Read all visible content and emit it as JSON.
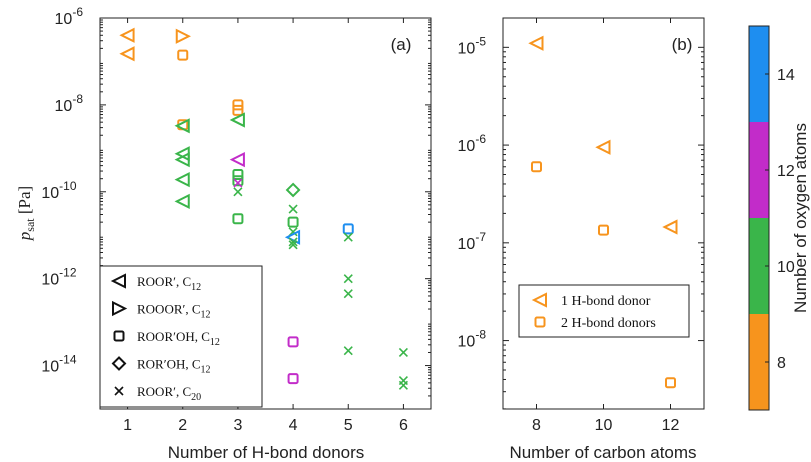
{
  "colors": {
    "o8": "#f7941d",
    "o10": "#3ab54a",
    "o12": "#c22cc9",
    "o14": "#1e8ef0"
  },
  "colorbar": {
    "label": "Number of oxygen atoms",
    "ticks": [
      "8",
      "10",
      "12",
      "14"
    ],
    "range": [
      7,
      15
    ]
  },
  "chart_data": [
    {
      "type": "scatter",
      "panel_label": "(a)",
      "xlabel": "Number of H-bond donors",
      "ylabel_main": "p",
      "ylabel_sub": "sat",
      "ylabel_unit": "[Pa]",
      "xlim": [
        0.5,
        6.5
      ],
      "ylim_log10": [
        -15,
        -6
      ],
      "x_ticks": [
        "1",
        "2",
        "3",
        "4",
        "5",
        "6"
      ],
      "y_ticks": [
        {
          "base": "10",
          "exp": "-6",
          "log": -6
        },
        {
          "base": "10",
          "exp": "-8",
          "log": -8
        },
        {
          "base": "10",
          "exp": "-10",
          "log": -10
        },
        {
          "base": "10",
          "exp": "-12",
          "log": -12
        },
        {
          "base": "10",
          "exp": "-14",
          "log": -14
        }
      ],
      "legend": [
        {
          "marker": "triangle-left",
          "name": "ROOR′, C",
          "sub": "12"
        },
        {
          "marker": "triangle-right",
          "name": "ROOOR′, C",
          "sub": "12"
        },
        {
          "marker": "square",
          "name": "ROOR′OH, C",
          "sub": "12"
        },
        {
          "marker": "diamond",
          "name": "ROR′OH, C",
          "sub": "12"
        },
        {
          "marker": "x",
          "name": "ROOR′, C",
          "sub": "20"
        }
      ],
      "points": [
        {
          "x": 1,
          "p": 4e-07,
          "marker": "triangle-left",
          "oxygen": 8
        },
        {
          "x": 1,
          "p": 1.5e-07,
          "marker": "triangle-left",
          "oxygen": 8
        },
        {
          "x": 2,
          "p": 3.8e-07,
          "marker": "triangle-right",
          "oxygen": 8
        },
        {
          "x": 2,
          "p": 1.4e-07,
          "marker": "square",
          "oxygen": 8
        },
        {
          "x": 2,
          "p": 3.5e-09,
          "marker": "square",
          "oxygen": 8
        },
        {
          "x": 2,
          "p": 3.3e-09,
          "marker": "triangle-left",
          "oxygen": 10
        },
        {
          "x": 2,
          "p": 7.5e-10,
          "marker": "triangle-left",
          "oxygen": 10
        },
        {
          "x": 2,
          "p": 5.5e-10,
          "marker": "triangle-left",
          "oxygen": 10
        },
        {
          "x": 2,
          "p": 1.9e-10,
          "marker": "triangle-left",
          "oxygen": 10
        },
        {
          "x": 2,
          "p": 6e-11,
          "marker": "triangle-left",
          "oxygen": 10
        },
        {
          "x": 3,
          "p": 1e-08,
          "marker": "square",
          "oxygen": 8
        },
        {
          "x": 3,
          "p": 7.5e-09,
          "marker": "square",
          "oxygen": 8
        },
        {
          "x": 3,
          "p": 4.5e-09,
          "marker": "triangle-left",
          "oxygen": 10
        },
        {
          "x": 3,
          "p": 5.5e-10,
          "marker": "triangle-left",
          "oxygen": 12
        },
        {
          "x": 3,
          "p": 2.5e-10,
          "marker": "square",
          "oxygen": 10
        },
        {
          "x": 3,
          "p": 1.8e-10,
          "marker": "square",
          "oxygen": 10
        },
        {
          "x": 3,
          "p": 1.6e-10,
          "marker": "x",
          "oxygen": 12
        },
        {
          "x": 3,
          "p": 1e-10,
          "marker": "x",
          "oxygen": 10
        },
        {
          "x": 3,
          "p": 2.4e-11,
          "marker": "square",
          "oxygen": 10
        },
        {
          "x": 4,
          "p": 1.1e-10,
          "marker": "diamond",
          "oxygen": 10
        },
        {
          "x": 4,
          "p": 4e-11,
          "marker": "x",
          "oxygen": 10
        },
        {
          "x": 4,
          "p": 2e-11,
          "marker": "square",
          "oxygen": 10
        },
        {
          "x": 4,
          "p": 1.2e-11,
          "marker": "x",
          "oxygen": 10
        },
        {
          "x": 4,
          "p": 9e-12,
          "marker": "triangle-left",
          "oxygen": 14
        },
        {
          "x": 4,
          "p": 7e-12,
          "marker": "x",
          "oxygen": 10
        },
        {
          "x": 4,
          "p": 6e-12,
          "marker": "x",
          "oxygen": 10
        },
        {
          "x": 4,
          "p": 3.5e-14,
          "marker": "square",
          "oxygen": 12
        },
        {
          "x": 4,
          "p": 5e-15,
          "marker": "square",
          "oxygen": 12
        },
        {
          "x": 5,
          "p": 1.4e-11,
          "marker": "square",
          "oxygen": 14
        },
        {
          "x": 5,
          "p": 9e-12,
          "marker": "x",
          "oxygen": 10
        },
        {
          "x": 5,
          "p": 1e-12,
          "marker": "x",
          "oxygen": 10
        },
        {
          "x": 5,
          "p": 4.5e-13,
          "marker": "x",
          "oxygen": 10
        },
        {
          "x": 5,
          "p": 2.2e-14,
          "marker": "x",
          "oxygen": 10
        },
        {
          "x": 6,
          "p": 2e-14,
          "marker": "x",
          "oxygen": 10
        },
        {
          "x": 6,
          "p": 4.5e-15,
          "marker": "x",
          "oxygen": 10
        },
        {
          "x": 6,
          "p": 3.5e-15,
          "marker": "x",
          "oxygen": 10
        }
      ]
    },
    {
      "type": "scatter",
      "panel_label": "(b)",
      "xlabel": "Number of carbon atoms",
      "xlim": [
        7,
        13
      ],
      "ylim_log10": [
        -8.7,
        -4.7
      ],
      "x_ticks": [
        "8",
        "10",
        "12"
      ],
      "y_ticks": [
        {
          "base": "10",
          "exp": "-5",
          "log": -5
        },
        {
          "base": "10",
          "exp": "-6",
          "log": -6
        },
        {
          "base": "10",
          "exp": "-7",
          "log": -7
        },
        {
          "base": "10",
          "exp": "-8",
          "log": -8
        }
      ],
      "legend": [
        {
          "marker": "triangle-left",
          "name": "1 H-bond donor"
        },
        {
          "marker": "square",
          "name": "2 H-bond donors"
        }
      ],
      "points": [
        {
          "x": 8,
          "p": 1.1e-05,
          "marker": "triangle-left",
          "oxygen": 8
        },
        {
          "x": 10,
          "p": 9.5e-07,
          "marker": "triangle-left",
          "oxygen": 8
        },
        {
          "x": 12,
          "p": 1.45e-07,
          "marker": "triangle-left",
          "oxygen": 8
        },
        {
          "x": 8,
          "p": 6e-07,
          "marker": "square",
          "oxygen": 8
        },
        {
          "x": 10,
          "p": 1.35e-07,
          "marker": "square",
          "oxygen": 8
        },
        {
          "x": 12,
          "p": 3.7e-09,
          "marker": "square",
          "oxygen": 8
        }
      ]
    }
  ]
}
